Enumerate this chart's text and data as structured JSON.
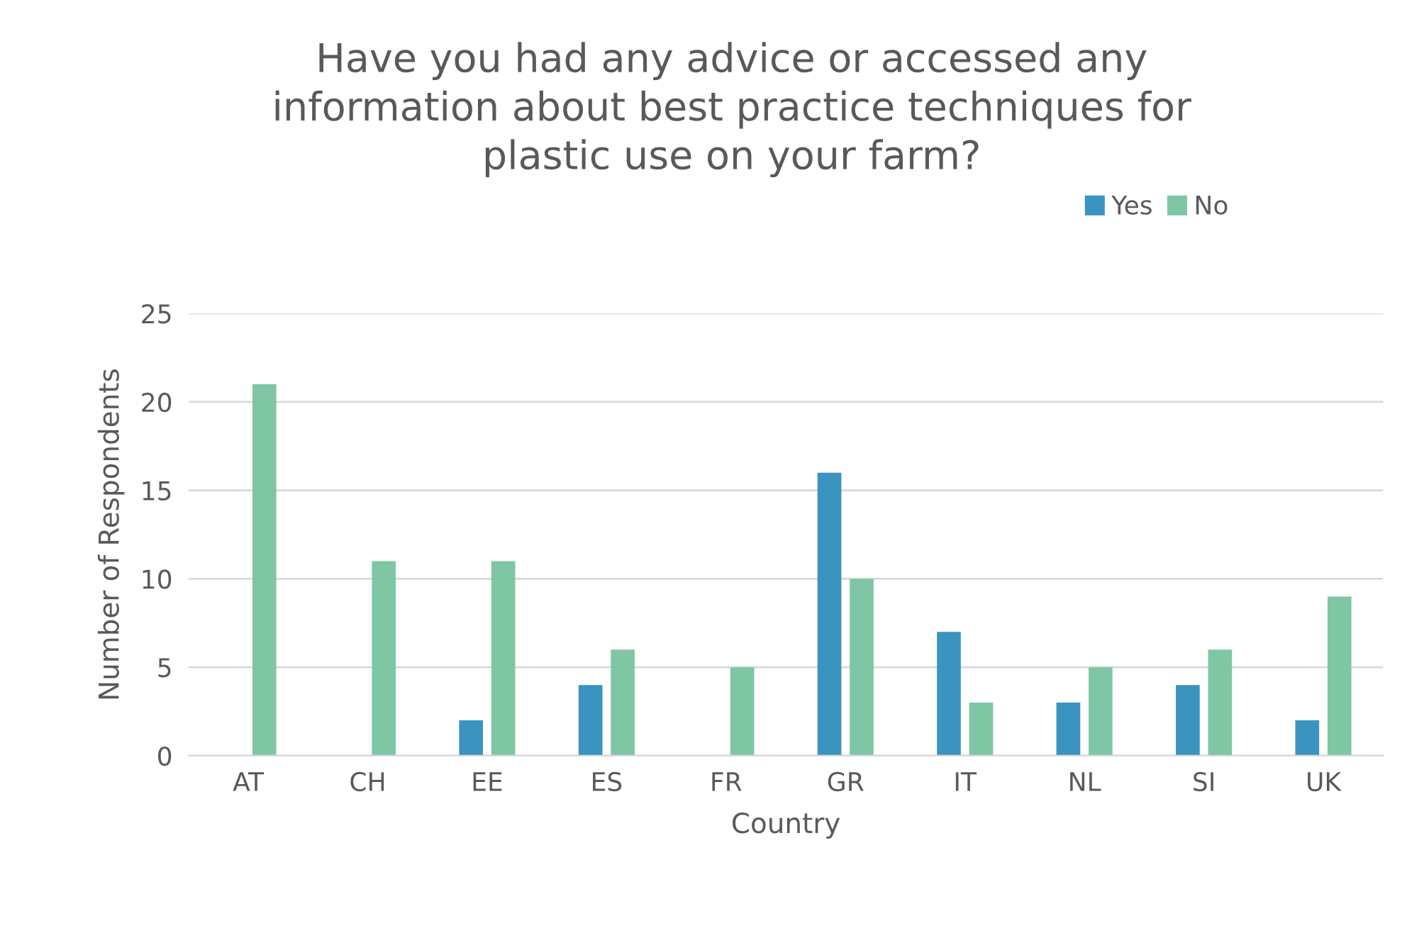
{
  "chart_data": {
    "type": "bar",
    "title": "Have you had any advice or accessed any\ninformation about best practice techniques for\nplastic use on your farm?",
    "xlabel": "Country",
    "ylabel": "Number of Respondents",
    "categories": [
      "AT",
      "CH",
      "EE",
      "ES",
      "FR",
      "GR",
      "IT",
      "NL",
      "SI",
      "UK"
    ],
    "series": [
      {
        "name": "Yes",
        "color": "#3a94bf",
        "values": [
          0,
          0,
          2,
          4,
          0,
          16,
          7,
          3,
          4,
          2
        ]
      },
      {
        "name": "No",
        "color": "#7fc6a4",
        "values": [
          21,
          11,
          11,
          6,
          5,
          10,
          3,
          5,
          6,
          9
        ]
      }
    ],
    "ylim": [
      0,
      25
    ],
    "yticks": [
      0,
      5,
      10,
      15,
      20,
      25
    ],
    "grid": "y",
    "legend": "top right"
  }
}
